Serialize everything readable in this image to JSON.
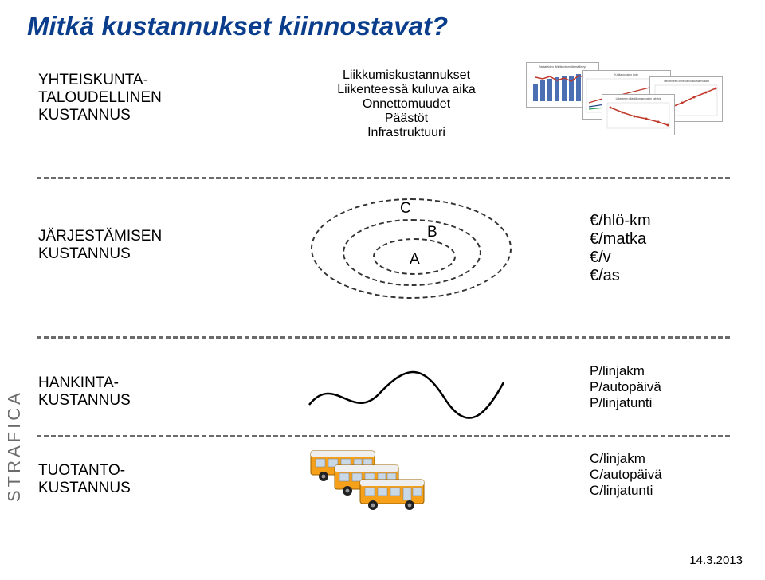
{
  "title": "Mitkä kustannukset kiinnostavat?",
  "colors": {
    "title": "#0a3e8c",
    "text": "#000000",
    "dashed": "#6b6b6b",
    "busBody": "#f7a11a",
    "busRoof": "#efefef",
    "busWindow": "#c9d8e6",
    "busTire": "#222222",
    "logo": "#6b6b6b",
    "barBlue": "#4a6fb3",
    "lineRed": "#c0392b",
    "lineGreen": "#2e9b5b",
    "lineNavy": "#2b4a8a",
    "chartText": "#444444"
  },
  "rows": {
    "r1": {
      "label_lines": [
        "YHTEISKUNTA-",
        "TALOUDELLINEN",
        "KUSTANNUS"
      ],
      "mid_lines": [
        "Liikkumiskustannukset",
        "Liikenteessä kuluva aika",
        "Onnettomuudet",
        "Päästöt",
        "Infrastruktuuri"
      ],
      "mini_chart_titles": [
        "Rautateiden lähiliikenteen täsmällisyys",
        "Kotitalouksien kulu",
        "Tieliikenteen onnettomuuskustannukset",
        "Liikenteen päästökustannusten kehitys"
      ]
    },
    "r2": {
      "label_lines": [
        "JÄRJESTÄMISEN",
        "KUSTANNUS"
      ],
      "ellipse_labels": {
        "A": "A",
        "B": "B",
        "C": "C"
      },
      "units": [
        "€/hlö-km",
        "€/matka",
        "€/v",
        "€/as"
      ]
    },
    "r3": {
      "label_lines": [
        "HANKINTA-",
        "KUSTANNUS"
      ],
      "units": [
        "P/linjakm",
        "P/autopäivä",
        "P/linjatunti"
      ]
    },
    "r4": {
      "label_lines": [
        "TUOTANTO-",
        "KUSTANNUS"
      ],
      "units": [
        "C/linjakm",
        "C/autopäivä",
        "C/linjatunti"
      ]
    }
  },
  "logo_text": "STRAFICA",
  "date": "14.3.2013"
}
